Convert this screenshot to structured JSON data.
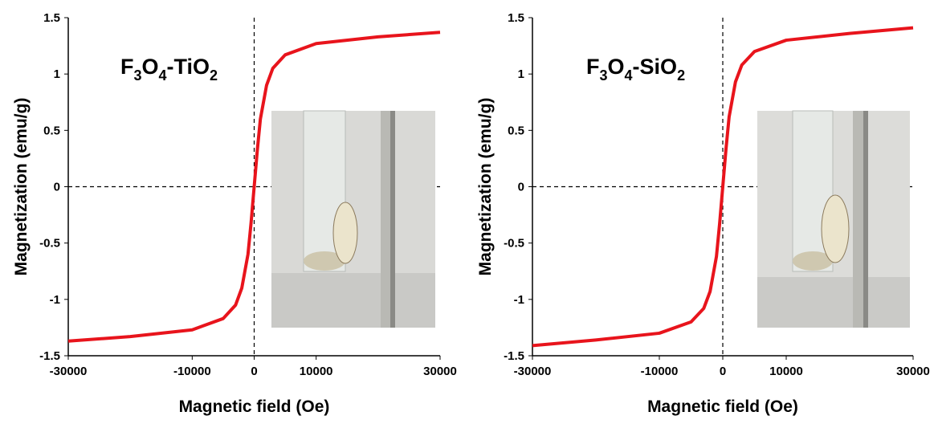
{
  "chart_data": [
    {
      "type": "line",
      "annotation": [
        "F",
        "3",
        "O",
        "4",
        "-TiO",
        "2"
      ],
      "x_label": "Magnetic field (Oe)",
      "y_label": "Magnetization (emu/g)",
      "x": [
        -30000,
        -20000,
        -10000,
        -5000,
        -3000,
        -2000,
        -1000,
        -500,
        0,
        500,
        1000,
        2000,
        3000,
        5000,
        10000,
        20000,
        30000
      ],
      "series": [
        {
          "color": "#e8141c",
          "values": [
            -1.37,
            -1.33,
            -1.27,
            -1.17,
            -1.05,
            -0.9,
            -0.6,
            -0.32,
            0,
            0.32,
            0.6,
            0.9,
            1.05,
            1.17,
            1.27,
            1.33,
            1.37
          ]
        }
      ],
      "xlim": [
        -30000,
        30000
      ],
      "ylim": [
        -1.5,
        1.5
      ],
      "xticks": [
        -30000,
        -10000,
        0,
        10000,
        30000
      ],
      "yticks": [
        -1.5,
        -1,
        -0.5,
        0,
        0.5,
        1,
        1.5
      ]
    },
    {
      "type": "line",
      "annotation": [
        "F",
        "3",
        "O",
        "4",
        "-SiO",
        "2"
      ],
      "x_label": "Magnetic field (Oe)",
      "y_label": "Magnetization (emu/g)",
      "x": [
        -30000,
        -20000,
        -10000,
        -5000,
        -3000,
        -2000,
        -1000,
        -500,
        0,
        500,
        1000,
        2000,
        3000,
        5000,
        10000,
        20000,
        30000
      ],
      "series": [
        {
          "color": "#e8141c",
          "values": [
            -1.41,
            -1.36,
            -1.3,
            -1.2,
            -1.08,
            -0.93,
            -0.62,
            -0.33,
            0,
            0.33,
            0.62,
            0.93,
            1.08,
            1.2,
            1.3,
            1.36,
            1.41
          ]
        }
      ],
      "xlim": [
        -30000,
        30000
      ],
      "ylim": [
        -1.5,
        1.5
      ],
      "xticks": [
        -30000,
        -10000,
        0,
        10000,
        30000
      ],
      "yticks": [
        -1.5,
        -1,
        -0.5,
        0,
        0.5,
        1,
        1.5
      ]
    }
  ]
}
